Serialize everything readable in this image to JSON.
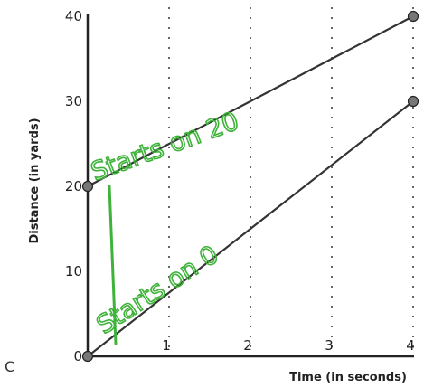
{
  "panel_label": "C",
  "chart_data": {
    "type": "line",
    "xlabel": "Time (in seconds)",
    "ylabel": "Distance (in yards)",
    "x_ticks": [
      0,
      1,
      2,
      3,
      4
    ],
    "y_ticks": [
      0,
      10,
      20,
      30,
      40
    ],
    "xlim": [
      0,
      4
    ],
    "ylim": [
      0,
      40
    ],
    "grid": "vertical dotted lines at x = 1, 2, 3, 4",
    "series": [
      {
        "x": [
          0,
          4
        ],
        "y": [
          20,
          40
        ],
        "color": "#333333"
      },
      {
        "x": [
          0,
          4
        ],
        "y": [
          0,
          30
        ],
        "color": "#333333"
      }
    ],
    "annotations": [
      {
        "text": "Starts on 20",
        "color": "#3fb23a"
      },
      {
        "text": "Starts on 0",
        "color": "#3fb23a"
      }
    ]
  }
}
